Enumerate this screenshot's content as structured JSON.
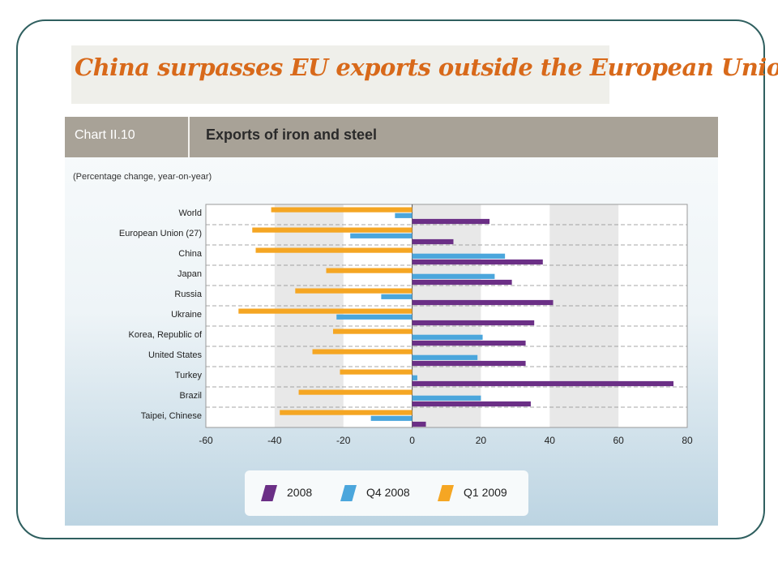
{
  "headline": "China surpasses EU exports outside the European Union",
  "chart_data": {
    "type": "bar",
    "orientation": "horizontal",
    "chart_number": "Chart II.10",
    "title": "Exports of iron and steel",
    "subtitle": "(Percentage change, year-on-year)",
    "categories": [
      "World",
      "European Union (27)",
      "China",
      "Japan",
      "Russia",
      "Ukraine",
      "Korea, Republic of",
      "United States",
      "Turkey",
      "Brazil",
      "Taipei, Chinese"
    ],
    "series": [
      {
        "name": "2008",
        "color": "#6b2f86",
        "values": [
          22.5,
          12,
          38,
          29,
          41,
          35.5,
          33,
          33,
          76,
          34.5,
          4
        ]
      },
      {
        "name": "Q4 2008",
        "color": "#4ba6dc",
        "values": [
          -5,
          -18,
          27,
          24,
          -9,
          -22,
          20.5,
          19,
          1.5,
          20,
          -12
        ]
      },
      {
        "name": "Q1 2009",
        "color": "#f5a623",
        "values": [
          -41,
          -46.5,
          -45.5,
          -25,
          -34,
          -50.5,
          -23,
          -29,
          -21,
          -33,
          -38.5
        ]
      }
    ],
    "xlim": [
      -60,
      80
    ],
    "xticks": [
      -60,
      -40,
      -20,
      0,
      20,
      40,
      60,
      80
    ],
    "legend_position": "bottom"
  }
}
